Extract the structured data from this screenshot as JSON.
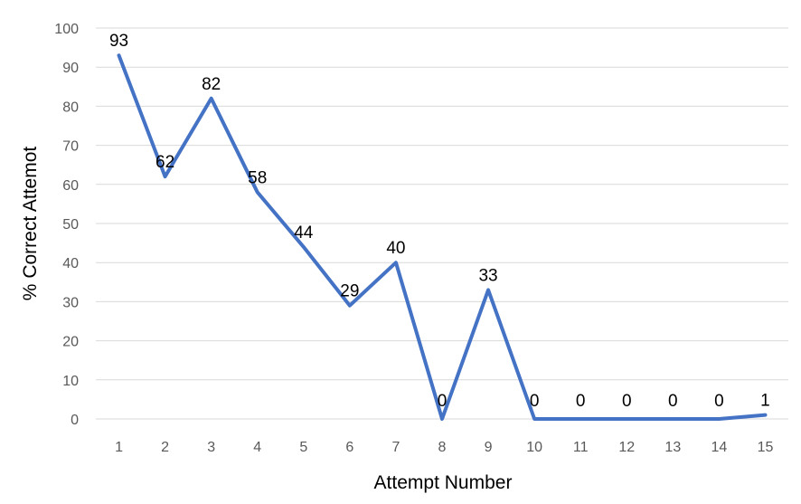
{
  "chart_data": {
    "type": "line",
    "title": "",
    "xlabel": "Attempt Number",
    "ylabel": "% Correct Attemot",
    "categories": [
      "1",
      "2",
      "3",
      "4",
      "5",
      "6",
      "7",
      "8",
      "9",
      "10",
      "11",
      "12",
      "13",
      "14",
      "15"
    ],
    "series": [
      {
        "values": [
          93,
          62,
          82,
          58,
          44,
          29,
          40,
          0,
          33,
          0,
          0,
          0,
          0,
          0,
          1
        ]
      }
    ],
    "data_labels": true,
    "ylim": [
      0,
      100
    ],
    "yticks": [
      0,
      10,
      20,
      30,
      40,
      50,
      60,
      70,
      80,
      90,
      100
    ],
    "grid": true,
    "legend": "none",
    "colors": {
      "line": "#4472c4",
      "grid": "#d9d9d9",
      "tick_text": "#595959"
    }
  }
}
